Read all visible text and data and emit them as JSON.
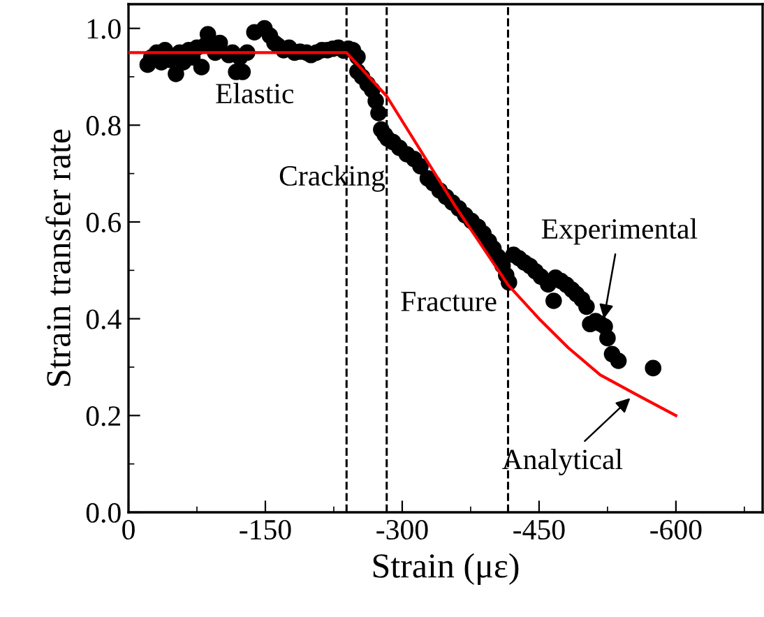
{
  "chart_data": {
    "type": "scatter",
    "xlabel": "Strain (με)",
    "ylabel": "Strain transfer rate",
    "xlim": [
      0,
      -695
    ],
    "xticks": [
      0,
      -150,
      -300,
      -450,
      -600
    ],
    "ylim": [
      0,
      1.05
    ],
    "yticks": [
      {
        "value": 0,
        "label": "0.0"
      },
      0.2,
      0.4,
      0.6,
      0.8,
      {
        "value": 1,
        "label": "1.0"
      }
    ],
    "grid": false,
    "marker": "circle",
    "series": [
      {
        "color": "#000000",
        "x": [
          -21,
          -25,
          -31,
          -36,
          -40,
          -45,
          -52,
          -56,
          -60,
          -66,
          -70,
          -75,
          -80,
          -84,
          -87,
          -95,
          -100,
          -110,
          -114,
          -118,
          -122,
          -125,
          -130,
          -138,
          -149,
          -155,
          -160,
          -164,
          -170,
          -176,
          -182,
          -188,
          -195,
          -200,
          -206,
          -212,
          -218,
          -224,
          -230,
          -236,
          -241,
          -246,
          -251,
          -251,
          -256,
          -262,
          -267,
          -271,
          -274,
          -277,
          -281,
          -284,
          -290,
          -297,
          -305,
          -313,
          -320,
          -328,
          -334,
          -341,
          -348,
          -355,
          -362,
          -369,
          -376,
          -383,
          -389,
          -395,
          -400,
          -405,
          -410,
          -414,
          -417,
          -422,
          -428,
          -434,
          -440,
          -446,
          -452,
          -460,
          -466,
          -468,
          -474,
          -480,
          -486,
          -491,
          -497,
          -502,
          -506,
          -512,
          -517,
          -522,
          -525,
          -530,
          -537,
          -575
        ],
        "values": [
          0.925,
          0.94,
          0.95,
          0.93,
          0.955,
          0.935,
          0.906,
          0.95,
          0.93,
          0.955,
          0.94,
          0.96,
          0.92,
          0.965,
          0.988,
          0.95,
          0.97,
          0.945,
          0.95,
          0.91,
          0.94,
          0.91,
          0.95,
          0.992,
          1.0,
          0.985,
          0.97,
          0.964,
          0.955,
          0.96,
          0.95,
          0.952,
          0.95,
          0.945,
          0.95,
          0.955,
          0.955,
          0.958,
          0.96,
          0.954,
          0.958,
          0.955,
          0.941,
          0.911,
          0.9,
          0.885,
          0.873,
          0.85,
          0.825,
          0.791,
          0.78,
          0.772,
          0.765,
          0.753,
          0.74,
          0.73,
          0.715,
          0.69,
          0.68,
          0.665,
          0.652,
          0.64,
          0.628,
          0.614,
          0.602,
          0.59,
          0.576,
          0.56,
          0.545,
          0.528,
          0.51,
          0.49,
          0.475,
          0.532,
          0.525,
          0.516,
          0.509,
          0.498,
          0.487,
          0.471,
          0.437,
          0.485,
          0.478,
          0.47,
          0.46,
          0.451,
          0.44,
          0.425,
          0.389,
          0.395,
          0.39,
          0.384,
          0.36,
          0.327,
          0.313,
          0.298
        ]
      },
      {
        "type": "line",
        "color": "#ff0000",
        "marker": "none",
        "line_style": "solid",
        "x": [
          0,
          -239,
          -283,
          -359,
          -416,
          -450,
          -482,
          -517,
          -560,
          -600
        ],
        "values": [
          0.95,
          0.95,
          0.86,
          0.63,
          0.47,
          0.4,
          0.34,
          0.284,
          0.24,
          0.2
        ]
      }
    ],
    "ref_lines": [
      {
        "axis": "x",
        "value": -239,
        "color": "#000000",
        "line_style": "dashed"
      },
      {
        "axis": "x",
        "value": -283,
        "color": "#000000",
        "line_style": "dashed"
      },
      {
        "axis": "x",
        "value": -416,
        "color": "#000000",
        "line_style": "dashed"
      }
    ],
    "annotations": [
      "Elastic",
      "Cracking",
      "Fracture",
      {
        "text": "Experimental",
        "x": -521,
        "y": 0.4
      },
      {
        "text": "Analytical",
        "x": -550,
        "y": 0.236
      }
    ]
  }
}
